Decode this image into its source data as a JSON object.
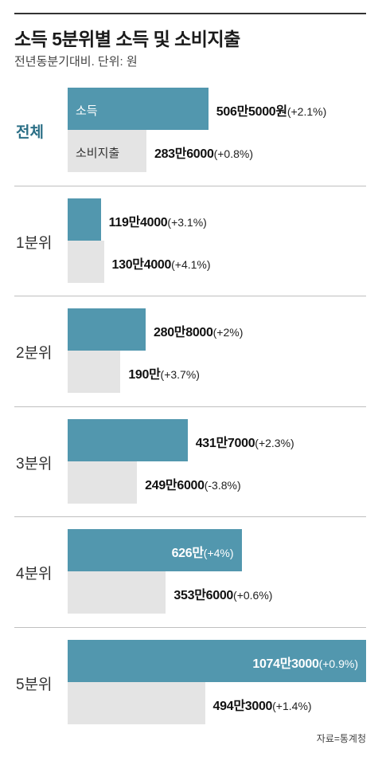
{
  "title": "소득 5분위별 소득 및 소비지출",
  "subtitle": "전년동분기대비. 단위: 원",
  "source": "자료=통계청",
  "colors": {
    "income": "#5297ae",
    "spending": "#e4e4e4",
    "highlight": "#2b6f86"
  },
  "chart_data": {
    "type": "bar",
    "orientation": "horizontal",
    "categories": [
      "전체",
      "1분위",
      "2분위",
      "3분위",
      "4분위",
      "5분위"
    ],
    "series": [
      {
        "name": "소득",
        "values": [
          5065000,
          1194000,
          2808000,
          4317000,
          6260000,
          10743000
        ],
        "labels": [
          "506만5000원",
          "119만4000",
          "280만8000",
          "431만7000",
          "626만",
          "1074만3000"
        ],
        "changes": [
          "(+2.1%)",
          "(+3.1%)",
          "(+2%)",
          "(+2.3%)",
          "(+4%)",
          "(+0.9%)"
        ]
      },
      {
        "name": "소비지출",
        "values": [
          2836000,
          1304000,
          1900000,
          2496000,
          3536000,
          4943000
        ],
        "labels": [
          "283만6000",
          "130만4000",
          "190만",
          "249만6000",
          "353만6000",
          "494만3000"
        ],
        "changes": [
          "(+0.8%)",
          "(+4.1%)",
          "(+3.7%)",
          "(-3.8%)",
          "(+0.6%)",
          "(+1.4%)"
        ]
      }
    ],
    "xlim": [
      0,
      10743000
    ],
    "grid": false,
    "legend": "inside-first-group"
  }
}
